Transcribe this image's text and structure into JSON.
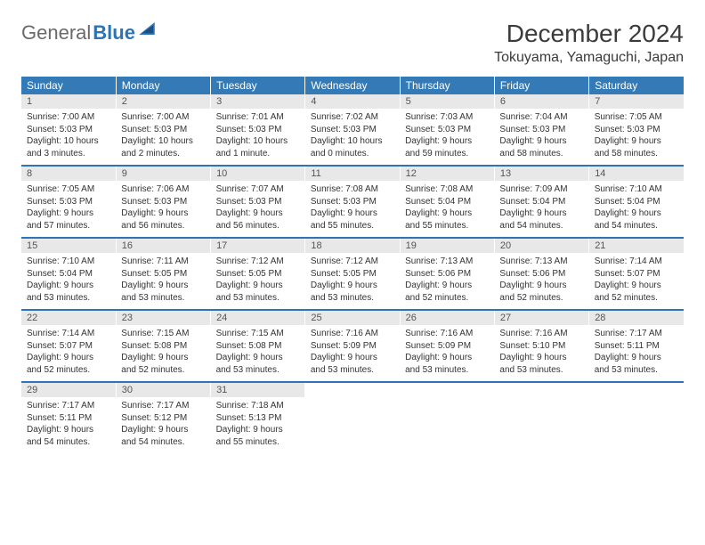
{
  "brand": {
    "part1": "General",
    "part2": "Blue"
  },
  "title": "December 2024",
  "location": "Tokuyama, Yamaguchi, Japan",
  "colors": {
    "header_bg": "#337ab7",
    "daynum_bg": "#e8e8e8",
    "rule": "#2e74b5"
  },
  "daynames": [
    "Sunday",
    "Monday",
    "Tuesday",
    "Wednesday",
    "Thursday",
    "Friday",
    "Saturday"
  ],
  "weeks": [
    {
      "nums": [
        "1",
        "2",
        "3",
        "4",
        "5",
        "6",
        "7"
      ],
      "cells": [
        {
          "sunrise": "Sunrise: 7:00 AM",
          "sunset": "Sunset: 5:03 PM",
          "day1": "Daylight: 10 hours",
          "day2": "and 3 minutes."
        },
        {
          "sunrise": "Sunrise: 7:00 AM",
          "sunset": "Sunset: 5:03 PM",
          "day1": "Daylight: 10 hours",
          "day2": "and 2 minutes."
        },
        {
          "sunrise": "Sunrise: 7:01 AM",
          "sunset": "Sunset: 5:03 PM",
          "day1": "Daylight: 10 hours",
          "day2": "and 1 minute."
        },
        {
          "sunrise": "Sunrise: 7:02 AM",
          "sunset": "Sunset: 5:03 PM",
          "day1": "Daylight: 10 hours",
          "day2": "and 0 minutes."
        },
        {
          "sunrise": "Sunrise: 7:03 AM",
          "sunset": "Sunset: 5:03 PM",
          "day1": "Daylight: 9 hours",
          "day2": "and 59 minutes."
        },
        {
          "sunrise": "Sunrise: 7:04 AM",
          "sunset": "Sunset: 5:03 PM",
          "day1": "Daylight: 9 hours",
          "day2": "and 58 minutes."
        },
        {
          "sunrise": "Sunrise: 7:05 AM",
          "sunset": "Sunset: 5:03 PM",
          "day1": "Daylight: 9 hours",
          "day2": "and 58 minutes."
        }
      ]
    },
    {
      "nums": [
        "8",
        "9",
        "10",
        "11",
        "12",
        "13",
        "14"
      ],
      "cells": [
        {
          "sunrise": "Sunrise: 7:05 AM",
          "sunset": "Sunset: 5:03 PM",
          "day1": "Daylight: 9 hours",
          "day2": "and 57 minutes."
        },
        {
          "sunrise": "Sunrise: 7:06 AM",
          "sunset": "Sunset: 5:03 PM",
          "day1": "Daylight: 9 hours",
          "day2": "and 56 minutes."
        },
        {
          "sunrise": "Sunrise: 7:07 AM",
          "sunset": "Sunset: 5:03 PM",
          "day1": "Daylight: 9 hours",
          "day2": "and 56 minutes."
        },
        {
          "sunrise": "Sunrise: 7:08 AM",
          "sunset": "Sunset: 5:03 PM",
          "day1": "Daylight: 9 hours",
          "day2": "and 55 minutes."
        },
        {
          "sunrise": "Sunrise: 7:08 AM",
          "sunset": "Sunset: 5:04 PM",
          "day1": "Daylight: 9 hours",
          "day2": "and 55 minutes."
        },
        {
          "sunrise": "Sunrise: 7:09 AM",
          "sunset": "Sunset: 5:04 PM",
          "day1": "Daylight: 9 hours",
          "day2": "and 54 minutes."
        },
        {
          "sunrise": "Sunrise: 7:10 AM",
          "sunset": "Sunset: 5:04 PM",
          "day1": "Daylight: 9 hours",
          "day2": "and 54 minutes."
        }
      ]
    },
    {
      "nums": [
        "15",
        "16",
        "17",
        "18",
        "19",
        "20",
        "21"
      ],
      "cells": [
        {
          "sunrise": "Sunrise: 7:10 AM",
          "sunset": "Sunset: 5:04 PM",
          "day1": "Daylight: 9 hours",
          "day2": "and 53 minutes."
        },
        {
          "sunrise": "Sunrise: 7:11 AM",
          "sunset": "Sunset: 5:05 PM",
          "day1": "Daylight: 9 hours",
          "day2": "and 53 minutes."
        },
        {
          "sunrise": "Sunrise: 7:12 AM",
          "sunset": "Sunset: 5:05 PM",
          "day1": "Daylight: 9 hours",
          "day2": "and 53 minutes."
        },
        {
          "sunrise": "Sunrise: 7:12 AM",
          "sunset": "Sunset: 5:05 PM",
          "day1": "Daylight: 9 hours",
          "day2": "and 53 minutes."
        },
        {
          "sunrise": "Sunrise: 7:13 AM",
          "sunset": "Sunset: 5:06 PM",
          "day1": "Daylight: 9 hours",
          "day2": "and 52 minutes."
        },
        {
          "sunrise": "Sunrise: 7:13 AM",
          "sunset": "Sunset: 5:06 PM",
          "day1": "Daylight: 9 hours",
          "day2": "and 52 minutes."
        },
        {
          "sunrise": "Sunrise: 7:14 AM",
          "sunset": "Sunset: 5:07 PM",
          "day1": "Daylight: 9 hours",
          "day2": "and 52 minutes."
        }
      ]
    },
    {
      "nums": [
        "22",
        "23",
        "24",
        "25",
        "26",
        "27",
        "28"
      ],
      "cells": [
        {
          "sunrise": "Sunrise: 7:14 AM",
          "sunset": "Sunset: 5:07 PM",
          "day1": "Daylight: 9 hours",
          "day2": "and 52 minutes."
        },
        {
          "sunrise": "Sunrise: 7:15 AM",
          "sunset": "Sunset: 5:08 PM",
          "day1": "Daylight: 9 hours",
          "day2": "and 52 minutes."
        },
        {
          "sunrise": "Sunrise: 7:15 AM",
          "sunset": "Sunset: 5:08 PM",
          "day1": "Daylight: 9 hours",
          "day2": "and 53 minutes."
        },
        {
          "sunrise": "Sunrise: 7:16 AM",
          "sunset": "Sunset: 5:09 PM",
          "day1": "Daylight: 9 hours",
          "day2": "and 53 minutes."
        },
        {
          "sunrise": "Sunrise: 7:16 AM",
          "sunset": "Sunset: 5:09 PM",
          "day1": "Daylight: 9 hours",
          "day2": "and 53 minutes."
        },
        {
          "sunrise": "Sunrise: 7:16 AM",
          "sunset": "Sunset: 5:10 PM",
          "day1": "Daylight: 9 hours",
          "day2": "and 53 minutes."
        },
        {
          "sunrise": "Sunrise: 7:17 AM",
          "sunset": "Sunset: 5:11 PM",
          "day1": "Daylight: 9 hours",
          "day2": "and 53 minutes."
        }
      ]
    },
    {
      "nums": [
        "29",
        "30",
        "31",
        "",
        "",
        "",
        ""
      ],
      "cells": [
        {
          "sunrise": "Sunrise: 7:17 AM",
          "sunset": "Sunset: 5:11 PM",
          "day1": "Daylight: 9 hours",
          "day2": "and 54 minutes."
        },
        {
          "sunrise": "Sunrise: 7:17 AM",
          "sunset": "Sunset: 5:12 PM",
          "day1": "Daylight: 9 hours",
          "day2": "and 54 minutes."
        },
        {
          "sunrise": "Sunrise: 7:18 AM",
          "sunset": "Sunset: 5:13 PM",
          "day1": "Daylight: 9 hours",
          "day2": "and 55 minutes."
        },
        null,
        null,
        null,
        null
      ]
    }
  ]
}
